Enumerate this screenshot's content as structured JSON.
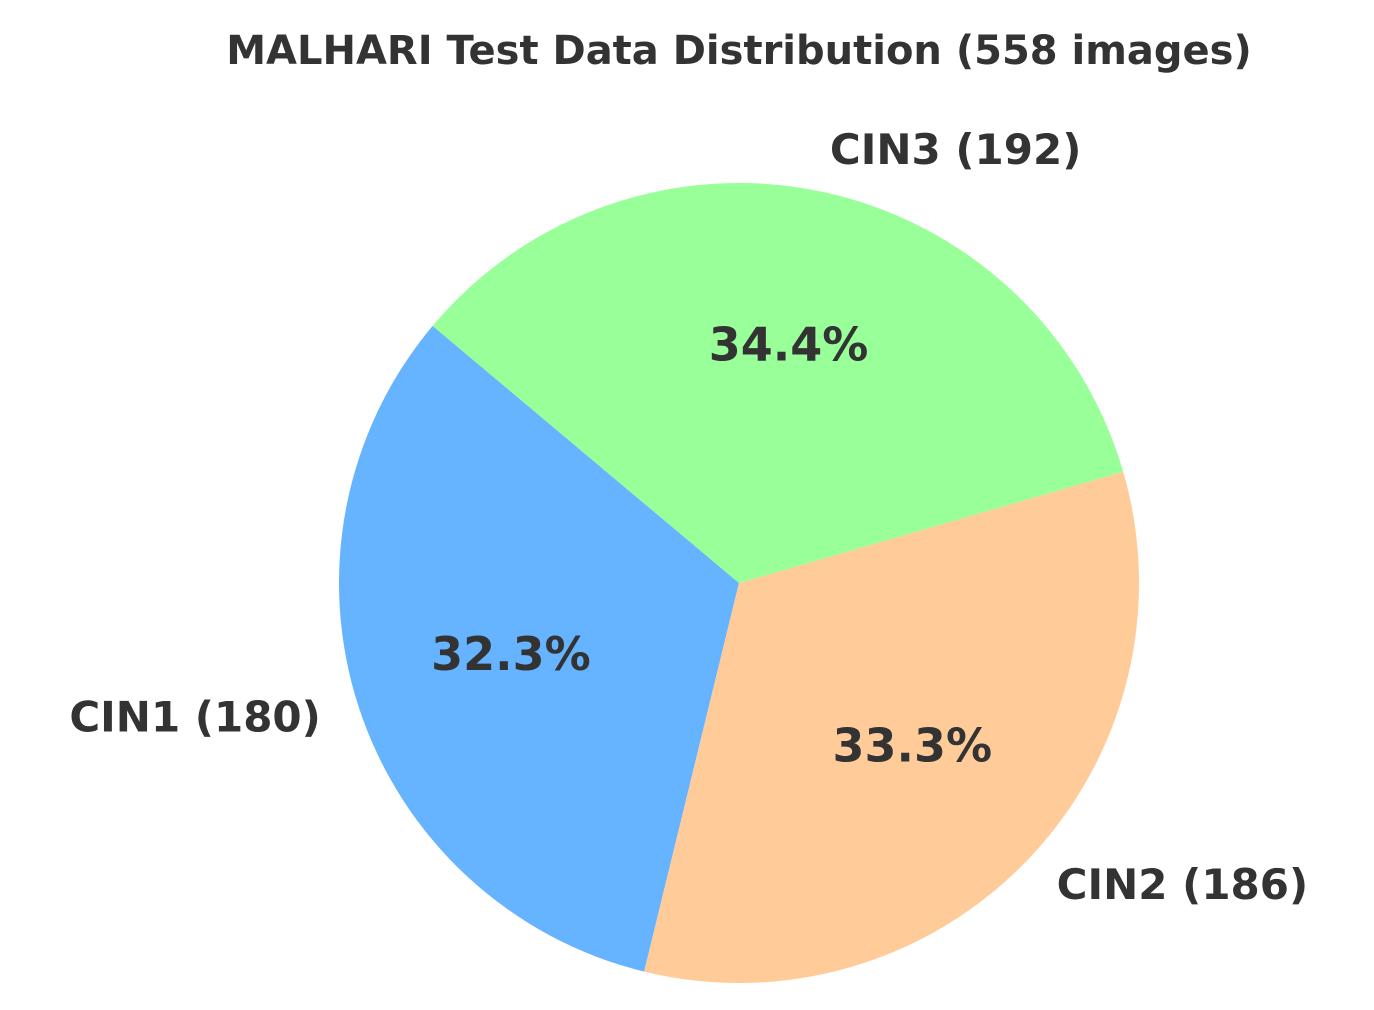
{
  "chart_data": {
    "type": "pie",
    "title": "MALHARI Test Data Distribution (558 images)",
    "categories": [
      "CIN1 (180)",
      "CIN2 (186)",
      "CIN3 (192)"
    ],
    "values": [
      32.3,
      33.3,
      34.4
    ],
    "value_labels": [
      "32.3%",
      "33.3%",
      "34.4%"
    ],
    "colors": [
      "#66b3ff",
      "#ffcc99",
      "#99ff99"
    ],
    "start_angle": 140,
    "direction": "counterclockwise"
  }
}
